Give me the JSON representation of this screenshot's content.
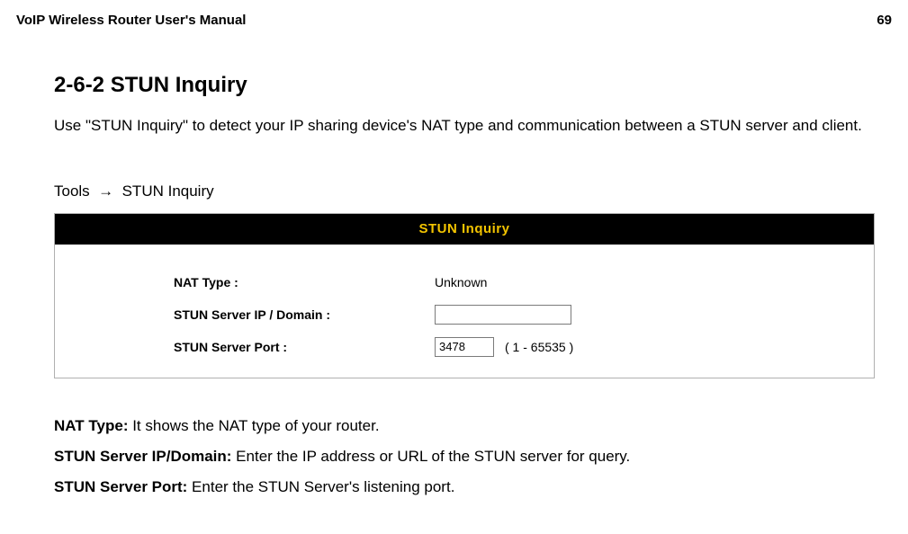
{
  "header": {
    "doc_title": "VoIP Wireless Router User's Manual",
    "page_number": "69"
  },
  "section": {
    "title": "2-6-2 STUN Inquiry",
    "intro": "Use \"STUN Inquiry\" to detect your IP sharing device's NAT type and communication between a STUN server and client.",
    "breadcrumb_left": "Tools",
    "breadcrumb_arrow": "→",
    "breadcrumb_right": "STUN Inquiry"
  },
  "panel": {
    "title": "STUN Inquiry",
    "rows": {
      "nat_type": {
        "label": "NAT Type :",
        "value": "Unknown"
      },
      "server_ip": {
        "label": "STUN Server IP / Domain :",
        "value": ""
      },
      "server_port": {
        "label": "STUN Server Port :",
        "value": "3478",
        "hint": "( 1 - 65535 )"
      }
    }
  },
  "definitions": {
    "d1": {
      "term": "NAT Type:",
      "desc": " It shows the NAT type of your router."
    },
    "d2": {
      "term": "STUN Server IP/Domain:",
      "desc": " Enter the IP address or URL of the STUN server for query."
    },
    "d3": {
      "term": "STUN Server Port:",
      "desc": " Enter the STUN Server's listening port."
    }
  }
}
